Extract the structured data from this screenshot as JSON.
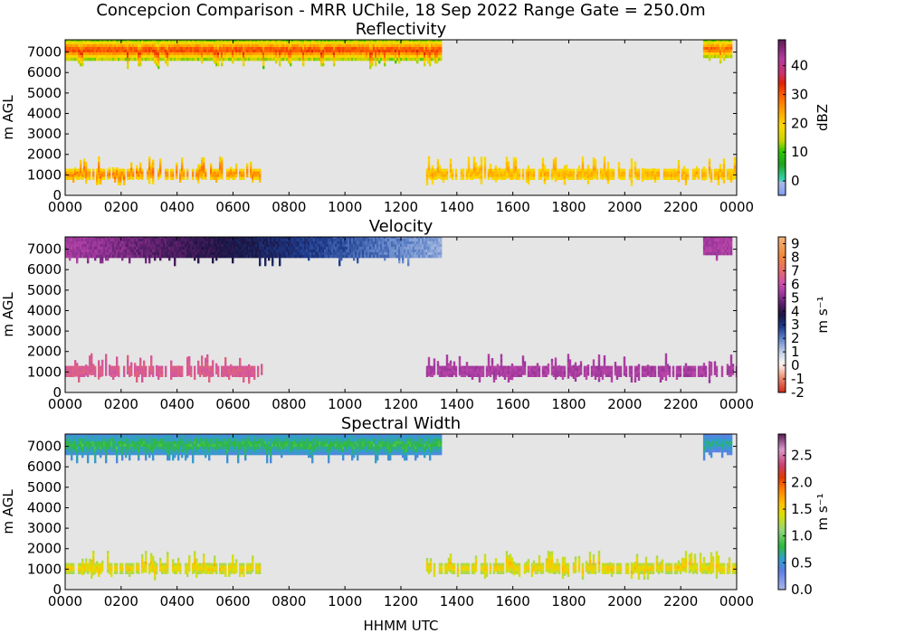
{
  "figure": {
    "title": "Concepcion Comparison - MRR UChile, 18 Sep 2022 Range Gate = 250.0m",
    "xlabel": "HHMM UTC"
  },
  "chart_data": [
    {
      "type": "heatmap",
      "title": "Reflectivity",
      "xlabel": "",
      "ylabel": "m AGL",
      "x_ticks": [
        "0000",
        "0200",
        "0400",
        "0600",
        "0800",
        "1000",
        "1200",
        "1400",
        "1600",
        "1800",
        "2000",
        "2200",
        "0000"
      ],
      "y_ticks": [
        0,
        1000,
        2000,
        3000,
        4000,
        5000,
        6000,
        7000
      ],
      "xlim_hours": [
        0,
        24
      ],
      "ylim": [
        0,
        7600
      ],
      "colorbar": {
        "label": "dBZ",
        "range": [
          -5,
          49
        ],
        "ticks": [
          0,
          10,
          20,
          30,
          40
        ],
        "colormap": "pyart_NWSRef"
      },
      "features": [
        {
          "what": "upper layer band",
          "start_hour": 0.0,
          "end_hour": 13.4,
          "altitude_range": [
            6700,
            7650
          ],
          "value_min": 10,
          "value_max": 36,
          "core_value": 33
        },
        {
          "what": "upper layer band",
          "start_hour": 22.8,
          "end_hour": 23.8,
          "altitude_range": [
            6800,
            7650
          ],
          "value_min": 10,
          "value_max": 32,
          "core_value": 30
        },
        {
          "what": "low layer band",
          "start_hour": 0.0,
          "end_hour": 7.0,
          "altitude_range": [
            900,
            1300
          ],
          "value_min": 18,
          "value_max": 32,
          "core_value": 28
        },
        {
          "what": "low layer band",
          "start_hour": 12.9,
          "end_hour": 24.0,
          "altitude_range": [
            900,
            1300
          ],
          "value_min": 18,
          "value_max": 28,
          "core_value": 24
        }
      ]
    },
    {
      "type": "heatmap",
      "title": "Velocity",
      "xlabel": "",
      "ylabel": "m AGL",
      "x_ticks": [
        "0000",
        "0200",
        "0400",
        "0600",
        "0800",
        "1000",
        "1200",
        "1400",
        "1600",
        "1800",
        "2000",
        "2200",
        "0000"
      ],
      "y_ticks": [
        0,
        1000,
        2000,
        3000,
        4000,
        5000,
        6000,
        7000
      ],
      "xlim_hours": [
        0,
        24
      ],
      "ylim": [
        0,
        7600
      ],
      "colorbar": {
        "label": "m s⁻¹",
        "range": [
          -2,
          9.5
        ],
        "ticks": [
          -2,
          -1,
          0,
          1,
          2,
          3,
          4,
          5,
          6,
          7,
          8,
          9
        ],
        "colormap": "pyart_BuDRd18"
      },
      "features": [
        {
          "what": "upper layer band",
          "start_hour": 0.0,
          "end_hour": 13.4,
          "altitude_range": [
            6700,
            7650
          ],
          "value_start": 5.5,
          "value_end": 1.5,
          "value_min": -0.5,
          "value_max": 5.8
        },
        {
          "what": "upper layer band",
          "start_hour": 22.8,
          "end_hour": 23.8,
          "altitude_range": [
            6800,
            7650
          ],
          "value_start": 5.5,
          "value_end": 5.5,
          "value_min": 5.0,
          "value_max": 6.0
        },
        {
          "what": "low layer band",
          "start_hour": 0.0,
          "end_hour": 7.0,
          "altitude_range": [
            900,
            1300
          ],
          "value_start": 6.5,
          "value_end": 6.5,
          "value_min": 5.5,
          "value_max": 8.0
        },
        {
          "what": "low layer band",
          "start_hour": 12.9,
          "end_hour": 24.0,
          "altitude_range": [
            900,
            1300
          ],
          "value_start": 5.5,
          "value_end": 5.5,
          "value_min": 5.0,
          "value_max": 7.0
        }
      ]
    },
    {
      "type": "heatmap",
      "title": "Spectral Width",
      "xlabel": "HHMM UTC",
      "ylabel": "m AGL",
      "x_ticks": [
        "0000",
        "0200",
        "0400",
        "0600",
        "0800",
        "1000",
        "1200",
        "1400",
        "1600",
        "1800",
        "2000",
        "2200",
        "0000"
      ],
      "y_ticks": [
        0,
        1000,
        2000,
        3000,
        4000,
        5000,
        6000,
        7000
      ],
      "xlim_hours": [
        0,
        24
      ],
      "ylim": [
        0,
        7600
      ],
      "colorbar": {
        "label": "m s⁻¹",
        "range": [
          0.0,
          2.9
        ],
        "ticks": [
          "0.0",
          "0.5",
          "1.0",
          "1.5",
          "2.0",
          "2.5"
        ],
        "colormap": "pyart_NWS_SPW"
      },
      "features": [
        {
          "what": "upper layer band",
          "start_hour": 0.0,
          "end_hour": 13.4,
          "altitude_range": [
            6700,
            7650
          ],
          "value_min": 0.4,
          "value_max": 1.4,
          "core_value": 0.85
        },
        {
          "what": "upper layer band",
          "start_hour": 22.8,
          "end_hour": 23.8,
          "altitude_range": [
            6800,
            7650
          ],
          "value_min": 0.3,
          "value_max": 1.0,
          "core_value": 0.7
        },
        {
          "what": "low layer band",
          "start_hour": 0.0,
          "end_hour": 7.0,
          "altitude_range": [
            900,
            1300
          ],
          "value_min": 1.2,
          "value_max": 2.0,
          "core_value": 1.6
        },
        {
          "what": "low layer band",
          "start_hour": 12.9,
          "end_hour": 24.0,
          "altitude_range": [
            900,
            1300
          ],
          "value_min": 1.2,
          "value_max": 2.0,
          "core_value": 1.6
        }
      ]
    }
  ],
  "colors": {
    "plot_background": "#e5e5e5",
    "axis": "#000000"
  }
}
